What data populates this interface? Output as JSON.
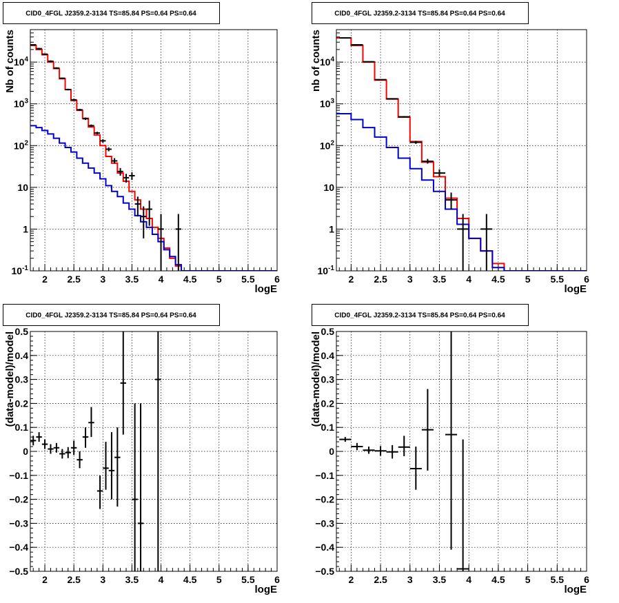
{
  "chart_data": [
    {
      "type": "line",
      "title": "CID0_4FGL J2359.2-3134 TS=85.84 PS=0.64 PS=0.64",
      "xlabel": "logE",
      "ylabel": "Nb of counts",
      "log_y": true,
      "xlim": [
        1.75,
        6
      ],
      "ylim": [
        0.1,
        60000
      ],
      "grid": true,
      "x_ticks": [
        2,
        2.5,
        3,
        3.5,
        4,
        4.5,
        5,
        5.5,
        6
      ],
      "x_tick_labels": [
        "2",
        "2.5",
        "3",
        "3.5",
        "4",
        "4.5",
        "5",
        "5.5",
        "6"
      ],
      "y_ticks": [
        0.1,
        1,
        10,
        100,
        1000,
        10000
      ],
      "y_tick_labels": [
        "10^-1",
        "1",
        "10",
        "10^2",
        "10^3",
        "10^4"
      ],
      "series": [
        {
          "color": "#ff0000",
          "style": "step",
          "edges": [
            1.75,
            1.85,
            1.95,
            2.05,
            2.15,
            2.25,
            2.35,
            2.45,
            2.55,
            2.65,
            2.75,
            2.85,
            2.95,
            3.05,
            3.15,
            3.25,
            3.35,
            3.45,
            3.55,
            3.65,
            3.75,
            3.85,
            3.95,
            4.05,
            4.15,
            4.25,
            4.35,
            4.45,
            6.0
          ],
          "values": [
            25000,
            20000,
            15000,
            10000,
            7000,
            4000,
            2200,
            1200,
            700,
            450,
            280,
            180,
            100,
            55,
            38,
            22,
            14,
            8,
            5,
            3,
            1.8,
            1.1,
            0.6,
            0.35,
            0.2,
            0.13,
            0.1,
            0.1
          ]
        },
        {
          "color": "#0000cc",
          "style": "step",
          "edges": [
            1.75,
            1.85,
            1.95,
            2.05,
            2.15,
            2.25,
            2.35,
            2.45,
            2.55,
            2.65,
            2.75,
            2.85,
            2.95,
            3.05,
            3.15,
            3.25,
            3.35,
            3.45,
            3.55,
            3.65,
            3.75,
            3.85,
            3.95,
            4.05,
            4.15,
            4.25,
            4.35,
            4.45,
            6.0
          ],
          "values": [
            300,
            270,
            230,
            190,
            150,
            115,
            90,
            70,
            50,
            38,
            29,
            22,
            16,
            11,
            8,
            6,
            4.2,
            3,
            2.1,
            1.5,
            1.1,
            0.75,
            0.5,
            0.32,
            0.22,
            0.14,
            0.1,
            0.1
          ]
        }
      ],
      "points": [
        {
          "x": 1.8,
          "y": 26000,
          "xerr": 0.05,
          "ylo": 25000,
          "yhi": 27000
        },
        {
          "x": 1.9,
          "y": 21000,
          "xerr": 0.05,
          "ylo": 20000,
          "yhi": 22000
        },
        {
          "x": 2.0,
          "y": 15500,
          "xerr": 0.05,
          "ylo": 14800,
          "yhi": 16200
        },
        {
          "x": 2.1,
          "y": 10500,
          "xerr": 0.05,
          "ylo": 10000,
          "yhi": 11000
        },
        {
          "x": 2.2,
          "y": 7200,
          "xerr": 0.05,
          "ylo": 6900,
          "yhi": 7500
        },
        {
          "x": 2.3,
          "y": 4100,
          "xerr": 0.05,
          "ylo": 3950,
          "yhi": 4250
        },
        {
          "x": 2.4,
          "y": 2200,
          "xerr": 0.05,
          "ylo": 2100,
          "yhi": 2300
        },
        {
          "x": 2.5,
          "y": 1250,
          "xerr": 0.05,
          "ylo": 1180,
          "yhi": 1320
        },
        {
          "x": 2.6,
          "y": 720,
          "xerr": 0.05,
          "ylo": 680,
          "yhi": 760
        },
        {
          "x": 2.7,
          "y": 440,
          "xerr": 0.05,
          "ylo": 410,
          "yhi": 470
        },
        {
          "x": 2.8,
          "y": 300,
          "xerr": 0.05,
          "ylo": 280,
          "yhi": 320
        },
        {
          "x": 2.9,
          "y": 200,
          "xerr": 0.05,
          "ylo": 186,
          "yhi": 214
        },
        {
          "x": 3.0,
          "y": 130,
          "xerr": 0.05,
          "ylo": 118,
          "yhi": 142
        },
        {
          "x": 3.1,
          "y": 82,
          "xerr": 0.05,
          "ylo": 73,
          "yhi": 91
        },
        {
          "x": 3.2,
          "y": 43,
          "xerr": 0.05,
          "ylo": 37,
          "yhi": 50
        },
        {
          "x": 3.3,
          "y": 24,
          "xerr": 0.05,
          "ylo": 19,
          "yhi": 29
        },
        {
          "x": 3.4,
          "y": 17,
          "xerr": 0.05,
          "ylo": 13,
          "yhi": 21
        },
        {
          "x": 3.5,
          "y": 19,
          "xerr": 0.05,
          "ylo": 15,
          "yhi": 23
        },
        {
          "x": 3.6,
          "y": 4,
          "xerr": 0.05,
          "ylo": 2,
          "yhi": 6
        },
        {
          "x": 3.7,
          "y": 2,
          "xerr": 0.05,
          "ylo": 0.6,
          "yhi": 3.5
        },
        {
          "x": 3.8,
          "y": 3,
          "xerr": 0.05,
          "ylo": 1.2,
          "yhi": 4.8
        },
        {
          "x": 4.0,
          "y": 1,
          "xerr": 0.05,
          "ylo": 0.1,
          "yhi": 2.3
        },
        {
          "x": 4.3,
          "y": 1,
          "xerr": 0.05,
          "ylo": 0.1,
          "yhi": 2.3
        }
      ]
    },
    {
      "type": "line",
      "title": "CID0_4FGL J2359.2-3134 TS=85.84 PS=0.64 PS=0.64",
      "xlabel": "logE",
      "ylabel": "nb of counts",
      "log_y": true,
      "xlim": [
        1.75,
        6
      ],
      "ylim": [
        0.1,
        60000
      ],
      "grid": true,
      "x_ticks": [
        2,
        2.5,
        3,
        3.5,
        4,
        4.5,
        5,
        5.5,
        6
      ],
      "x_tick_labels": [
        "2",
        "2.5",
        "3",
        "3.5",
        "4",
        "4.5",
        "5",
        "5.5",
        "6"
      ],
      "y_ticks": [
        0.1,
        1,
        10,
        100,
        1000,
        10000
      ],
      "y_tick_labels": [
        "10^-1",
        "1",
        "10",
        "10^2",
        "10^3",
        "10^4"
      ],
      "series": [
        {
          "color": "#ff0000",
          "style": "step",
          "edges": [
            1.75,
            2.0,
            2.2,
            2.4,
            2.6,
            2.8,
            3.0,
            3.2,
            3.4,
            3.6,
            3.8,
            4.0,
            4.2,
            4.4,
            4.6,
            6.0
          ],
          "values": [
            38000,
            25000,
            10000,
            3700,
            1300,
            480,
            125,
            40,
            18,
            5.5,
            1.8,
            0.6,
            0.3,
            0.15,
            0.1
          ]
        },
        {
          "color": "#0000cc",
          "style": "step",
          "edges": [
            1.75,
            2.0,
            2.2,
            2.4,
            2.6,
            2.8,
            3.0,
            3.2,
            3.4,
            3.6,
            3.8,
            4.0,
            4.2,
            4.4,
            4.6,
            6.0
          ],
          "values": [
            580,
            420,
            270,
            160,
            90,
            50,
            28,
            15,
            8,
            3,
            1.3,
            0.6,
            0.3,
            0.12,
            0.1
          ]
        }
      ],
      "points": [
        {
          "x": 1.9,
          "y": 38000,
          "xerr": 0.1,
          "ylo": 37000,
          "yhi": 39000
        },
        {
          "x": 2.1,
          "y": 26000,
          "xerr": 0.1,
          "ylo": 25000,
          "yhi": 27000
        },
        {
          "x": 2.3,
          "y": 10200,
          "xerr": 0.1,
          "ylo": 9900,
          "yhi": 10500
        },
        {
          "x": 2.5,
          "y": 3800,
          "xerr": 0.1,
          "ylo": 3700,
          "yhi": 3900
        },
        {
          "x": 2.7,
          "y": 1320,
          "xerr": 0.1,
          "ylo": 1270,
          "yhi": 1370
        },
        {
          "x": 2.9,
          "y": 490,
          "xerr": 0.1,
          "ylo": 470,
          "yhi": 510
        },
        {
          "x": 3.1,
          "y": 120,
          "xerr": 0.1,
          "ylo": 110,
          "yhi": 130
        },
        {
          "x": 3.3,
          "y": 42,
          "xerr": 0.1,
          "ylo": 37,
          "yhi": 48
        },
        {
          "x": 3.5,
          "y": 22,
          "xerr": 0.1,
          "ylo": 18,
          "yhi": 27
        },
        {
          "x": 3.7,
          "y": 5,
          "xerr": 0.1,
          "ylo": 3,
          "yhi": 7.5
        },
        {
          "x": 3.9,
          "y": 1,
          "xerr": 0.1,
          "ylo": 0.1,
          "yhi": 2.3
        },
        {
          "x": 4.3,
          "y": 1,
          "xerr": 0.1,
          "ylo": 0.1,
          "yhi": 2.3
        }
      ]
    },
    {
      "type": "scatter",
      "title": "CID0_4FGL J2359.2-3134 TS=85.84 PS=0.64 PS=0.64",
      "xlabel": "logE",
      "ylabel": "(data-model)/model",
      "log_y": false,
      "xlim": [
        1.75,
        6
      ],
      "ylim": [
        -0.5,
        0.5
      ],
      "grid": true,
      "x_ticks": [
        2,
        2.5,
        3,
        3.5,
        4,
        4.5,
        5,
        5.5,
        6
      ],
      "x_tick_labels": [
        "2",
        "2.5",
        "3",
        "3.5",
        "4",
        "4.5",
        "5",
        "5.5",
        "6"
      ],
      "y_ticks": [
        -0.5,
        -0.4,
        -0.3,
        -0.2,
        -0.1,
        0,
        0.1,
        0.2,
        0.3,
        0.4,
        0.5
      ],
      "y_tick_labels": [
        "−0.5",
        "−0.4",
        "−0.3",
        "−0.2",
        "−0.1",
        "0",
        "0.1",
        "0.2",
        "0.3",
        "0.4",
        "0.5"
      ],
      "points": [
        {
          "x": 1.8,
          "y": 0.045,
          "xerr": 0.05,
          "ylo": 0.025,
          "yhi": 0.065
        },
        {
          "x": 1.9,
          "y": 0.06,
          "xerr": 0.05,
          "ylo": 0.04,
          "yhi": 0.08
        },
        {
          "x": 2.0,
          "y": 0.03,
          "xerr": 0.05,
          "ylo": 0.01,
          "yhi": 0.05
        },
        {
          "x": 2.1,
          "y": 0.01,
          "xerr": 0.05,
          "ylo": -0.01,
          "yhi": 0.03
        },
        {
          "x": 2.2,
          "y": 0.015,
          "xerr": 0.05,
          "ylo": -0.005,
          "yhi": 0.035
        },
        {
          "x": 2.3,
          "y": -0.01,
          "xerr": 0.05,
          "ylo": -0.03,
          "yhi": 0.01
        },
        {
          "x": 2.4,
          "y": -0.005,
          "xerr": 0.05,
          "ylo": -0.028,
          "yhi": 0.018
        },
        {
          "x": 2.5,
          "y": 0.015,
          "xerr": 0.05,
          "ylo": -0.015,
          "yhi": 0.045
        },
        {
          "x": 2.6,
          "y": -0.035,
          "xerr": 0.05,
          "ylo": -0.07,
          "yhi": 0.0
        },
        {
          "x": 2.7,
          "y": 0.06,
          "xerr": 0.05,
          "ylo": 0.015,
          "yhi": 0.1
        },
        {
          "x": 2.8,
          "y": 0.12,
          "xerr": 0.05,
          "ylo": 0.06,
          "yhi": 0.185
        },
        {
          "x": 2.95,
          "y": -0.165,
          "xerr": 0.05,
          "ylo": -0.24,
          "yhi": -0.1
        },
        {
          "x": 3.05,
          "y": -0.07,
          "xerr": 0.05,
          "ylo": -0.16,
          "yhi": 0.04
        },
        {
          "x": 3.15,
          "y": -0.08,
          "xerr": 0.05,
          "ylo": -0.2,
          "yhi": 0.08
        },
        {
          "x": 3.25,
          "y": -0.025,
          "xerr": 0.05,
          "ylo": -0.23,
          "yhi": 0.1
        },
        {
          "x": 3.35,
          "y": 0.285,
          "xerr": 0.05,
          "ylo": 0.07,
          "yhi": 0.5
        },
        {
          "x": 3.55,
          "y": -0.2,
          "xerr": 0.05,
          "ylo": -0.5,
          "yhi": 0.2
        },
        {
          "x": 3.65,
          "y": -0.3,
          "xerr": 0.05,
          "ylo": -0.5,
          "yhi": 0.2
        },
        {
          "x": 3.95,
          "y": 0.3,
          "xerr": 0.05,
          "ylo": -0.5,
          "yhi": 0.5
        }
      ]
    },
    {
      "type": "scatter",
      "title": "CID0_4FGL J2359.2-3134 TS=85.84 PS=0.64 PS=0.64",
      "xlabel": "logE",
      "ylabel": "(data-model)/model",
      "log_y": false,
      "xlim": [
        1.75,
        6
      ],
      "ylim": [
        -0.5,
        0.5
      ],
      "grid": true,
      "x_ticks": [
        2,
        2.5,
        3,
        3.5,
        4,
        4.5,
        5,
        5.5,
        6
      ],
      "x_tick_labels": [
        "2",
        "2.5",
        "3",
        "3.5",
        "4",
        "4.5",
        "5",
        "5.5",
        "6"
      ],
      "y_ticks": [
        -0.5,
        -0.4,
        -0.3,
        -0.2,
        -0.1,
        0,
        0.1,
        0.2,
        0.3,
        0.4,
        0.5
      ],
      "y_tick_labels": [
        "−0.5",
        "−0.4",
        "−0.3",
        "−0.2",
        "−0.1",
        "0",
        "0.1",
        "0.2",
        "0.3",
        "0.4",
        "0.5"
      ],
      "points": [
        {
          "x": 1.9,
          "y": 0.05,
          "xerr": 0.1,
          "ylo": 0.04,
          "yhi": 0.06
        },
        {
          "x": 2.1,
          "y": 0.02,
          "xerr": 0.1,
          "ylo": 0.005,
          "yhi": 0.035
        },
        {
          "x": 2.3,
          "y": 0.005,
          "xerr": 0.1,
          "ylo": -0.01,
          "yhi": 0.02
        },
        {
          "x": 2.5,
          "y": 0.002,
          "xerr": 0.1,
          "ylo": -0.018,
          "yhi": 0.022
        },
        {
          "x": 2.7,
          "y": -0.002,
          "xerr": 0.1,
          "ylo": -0.03,
          "yhi": 0.026
        },
        {
          "x": 2.9,
          "y": 0.018,
          "xerr": 0.1,
          "ylo": -0.02,
          "yhi": 0.065
        },
        {
          "x": 3.1,
          "y": -0.072,
          "xerr": 0.1,
          "ylo": -0.16,
          "yhi": 0.02
        },
        {
          "x": 3.3,
          "y": 0.09,
          "xerr": 0.1,
          "ylo": -0.08,
          "yhi": 0.26
        },
        {
          "x": 3.7,
          "y": 0.07,
          "xerr": 0.1,
          "ylo": -0.41,
          "yhi": 0.5
        },
        {
          "x": 3.9,
          "y": -0.49,
          "xerr": 0.1,
          "ylo": -0.5,
          "yhi": 0.05
        }
      ]
    }
  ]
}
